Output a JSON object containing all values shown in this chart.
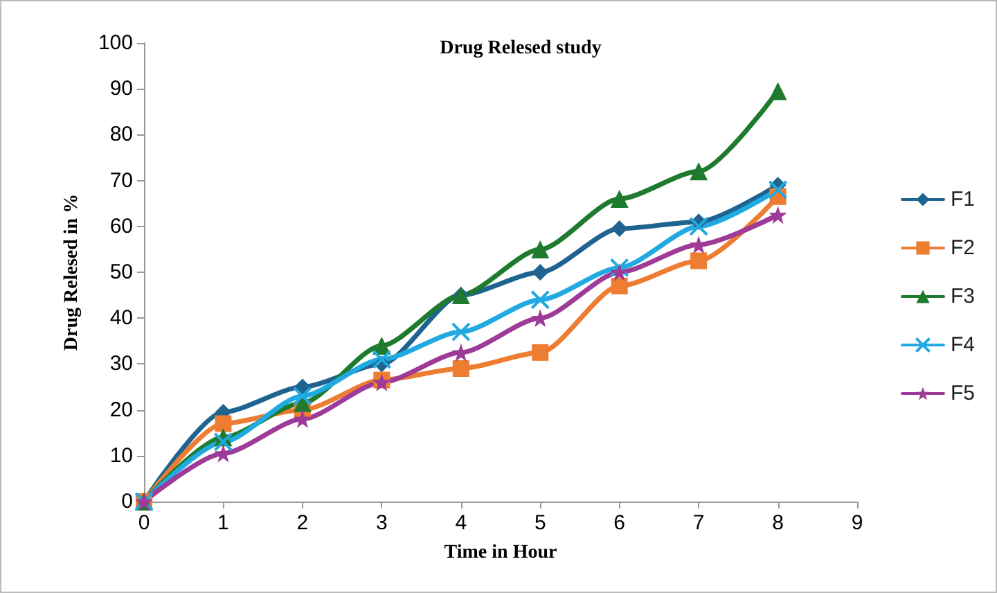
{
  "chart_data": {
    "type": "line",
    "title": "Drug Relesed study",
    "xlabel": "Time in Hour",
    "ylabel": "Drug Relesed in %",
    "x": [
      0,
      1,
      2,
      3,
      4,
      5,
      6,
      7,
      8
    ],
    "series": [
      {
        "name": "F1",
        "color": "#1f6391",
        "marker": "diamond",
        "values": [
          0,
          19.5,
          25,
          30,
          45,
          50,
          59.5,
          61,
          69
        ]
      },
      {
        "name": "F2",
        "color": "#ed7d31",
        "marker": "square",
        "values": [
          0,
          17,
          20,
          26.5,
          29,
          32.5,
          47,
          52.5,
          66.5
        ]
      },
      {
        "name": "F3",
        "color": "#1e7b2e",
        "marker": "triangle",
        "values": [
          0,
          14,
          21.5,
          34,
          45,
          55,
          66,
          72,
          89.5
        ]
      },
      {
        "name": "F4",
        "color": "#21a9e1",
        "marker": "cross",
        "values": [
          0,
          13,
          23,
          31,
          37,
          44,
          51,
          60,
          68
        ]
      },
      {
        "name": "F5",
        "color": "#9e3a98",
        "marker": "star",
        "values": [
          0,
          10.5,
          18,
          26,
          32.5,
          40,
          50,
          56,
          62.5
        ]
      }
    ],
    "xlim": [
      0,
      9
    ],
    "xticks": [
      0,
      1,
      2,
      3,
      4,
      5,
      6,
      7,
      8,
      9
    ],
    "ylim": [
      0,
      100
    ],
    "yticks": [
      0,
      10,
      20,
      30,
      40,
      50,
      60,
      70,
      80,
      90,
      100
    ],
    "grid": false,
    "legend": "right"
  }
}
